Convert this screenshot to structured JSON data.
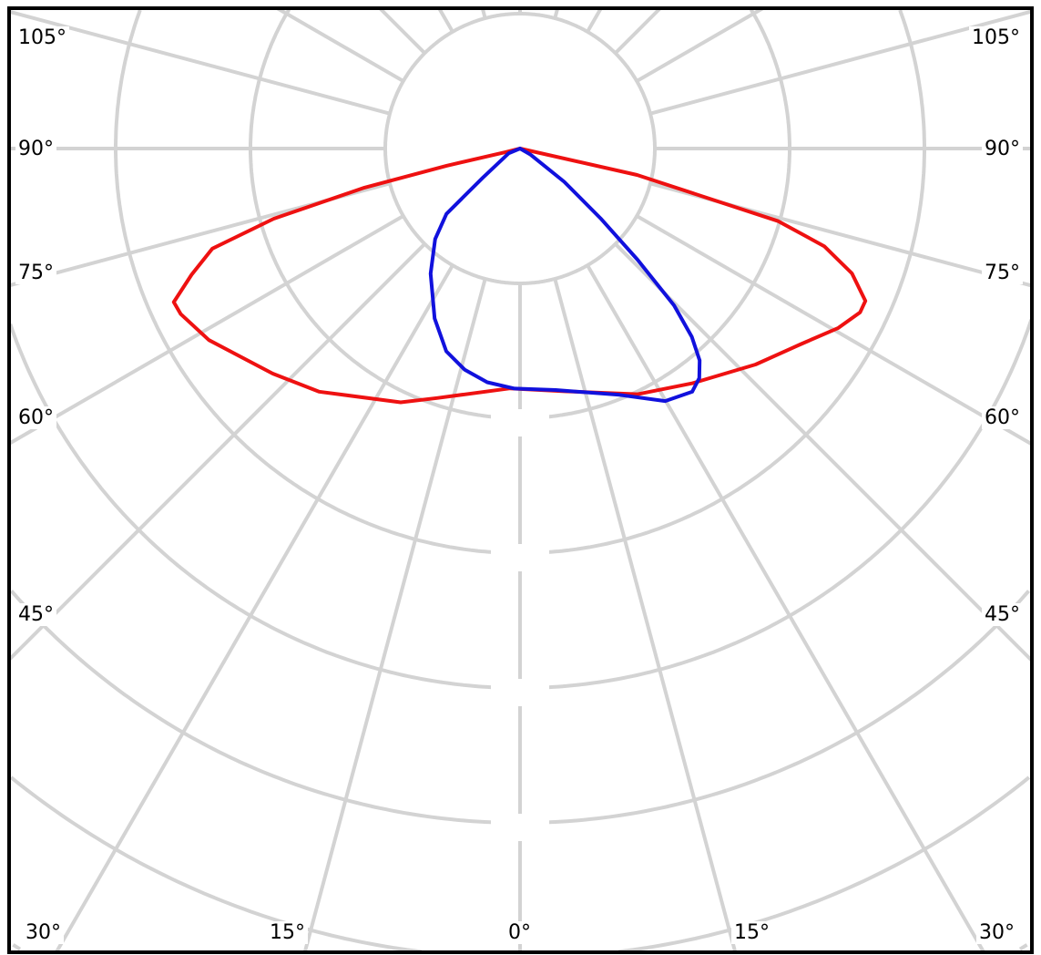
{
  "chart_data": {
    "type": "polar-line",
    "title": "",
    "angle_unit": "degrees",
    "zero_direction": "down",
    "grid": true,
    "angle_tick_step": 15,
    "radial_value_labels": "masked",
    "angle_labels": {
      "left": [
        "105°",
        "90°",
        "75°",
        "60°",
        "45°"
      ],
      "right": [
        "105°",
        "90°",
        "75°",
        "60°",
        "45°"
      ],
      "bottom": [
        "30°",
        "15°",
        "0°",
        "15°",
        "30°"
      ]
    },
    "series": [
      {
        "color": "#ee1111",
        "points": [
          [
            -90,
            0.0
          ],
          [
            -76,
            0.11
          ],
          [
            -76.8,
            0.56
          ],
          [
            -75.9,
            1.19
          ],
          [
            -74.1,
            1.9
          ],
          [
            -72.0,
            2.4
          ],
          [
            -69.0,
            2.61
          ],
          [
            -66.1,
            2.81
          ],
          [
            -64.0,
            2.8
          ],
          [
            -58.4,
            2.71
          ],
          [
            -47.7,
            2.48
          ],
          [
            -39.6,
            2.34
          ],
          [
            -25.2,
            2.08
          ],
          [
            -18.4,
            1.95
          ],
          [
            -2.4,
            1.78
          ],
          [
            10.4,
            1.83
          ],
          [
            25.6,
            2.02
          ],
          [
            36.3,
            2.16
          ],
          [
            47.5,
            2.37
          ],
          [
            55.2,
            2.54
          ],
          [
            60.6,
            2.71
          ],
          [
            64.3,
            2.8
          ],
          [
            66.2,
            2.8
          ],
          [
            69.4,
            2.63
          ],
          [
            72.2,
            2.37
          ],
          [
            74.3,
            1.99
          ],
          [
            77.3,
            0.89
          ],
          [
            90,
            0.0
          ]
        ]
      },
      {
        "color": "#1111dd",
        "points": [
          [
            -90,
            0.0
          ],
          [
            -67.4,
            0.09
          ],
          [
            -52.0,
            0.35
          ],
          [
            -48.4,
            0.73
          ],
          [
            -43.2,
            0.92
          ],
          [
            -35.6,
            1.14
          ],
          [
            -26.7,
            1.41
          ],
          [
            -20.0,
            1.6
          ],
          [
            -14.1,
            1.69
          ],
          [
            -8.0,
            1.75
          ],
          [
            -1.3,
            1.78
          ],
          [
            8.4,
            1.81
          ],
          [
            22.0,
            1.97
          ],
          [
            29.9,
            2.16
          ],
          [
            35.3,
            2.21
          ],
          [
            38.0,
            2.16
          ],
          [
            40.3,
            2.06
          ],
          [
            42.4,
            1.89
          ],
          [
            44.5,
            1.63
          ],
          [
            46.6,
            1.2
          ],
          [
            49.1,
            0.79
          ],
          [
            53.0,
            0.41
          ],
          [
            59.7,
            0.09
          ],
          [
            90,
            0.0
          ]
        ]
      }
    ],
    "colors": {
      "grid": "#d3d3d3",
      "frame": "#000000"
    }
  }
}
